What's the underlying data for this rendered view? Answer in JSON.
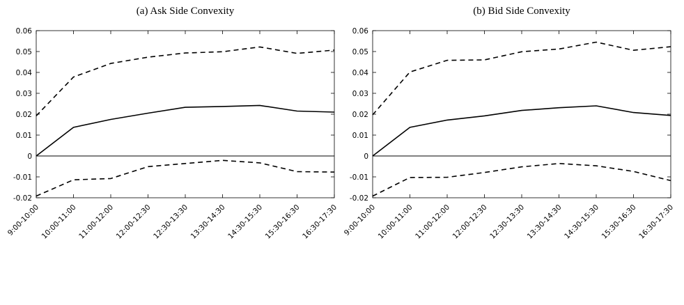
{
  "chart_data": [
    {
      "type": "line",
      "title": "(a) Ask Side Convexity",
      "categories": [
        "9:00-10:00",
        "10:00-11:00",
        "11:00-12:00",
        "12:00-12:30",
        "12:30-13:30",
        "13:30-14:30",
        "14:30-15:30",
        "15:30-16:30",
        "16:30-17:30"
      ],
      "series": [
        {
          "style": "solid",
          "values": [
            0.0,
            0.0137,
            0.0175,
            0.0205,
            0.0233,
            0.0237,
            0.0242,
            0.0215,
            0.021
          ]
        },
        {
          "style": "dashed",
          "values": [
            0.0192,
            0.0378,
            0.0443,
            0.0473,
            0.0493,
            0.0499,
            0.0522,
            0.0491,
            0.0507
          ]
        },
        {
          "style": "dashed",
          "values": [
            -0.0192,
            -0.0114,
            -0.0108,
            -0.0051,
            -0.0036,
            -0.0021,
            -0.0033,
            -0.0075,
            -0.0077
          ]
        }
      ],
      "ylim": [
        -0.02,
        0.06
      ],
      "yticks": [
        "-0.02",
        "-0.01",
        "0",
        "0.01",
        "0.02",
        "0.03",
        "0.04",
        "0.05",
        "0.06"
      ],
      "ytick_values": [
        -0.02,
        -0.01,
        0,
        0.01,
        0.02,
        0.03,
        0.04,
        0.05,
        0.06
      ],
      "zero_line": true,
      "grid": false,
      "xlabel": "",
      "ylabel": ""
    },
    {
      "type": "line",
      "title": "(b) Bid Side Convexity",
      "categories": [
        "9:00-10:00",
        "10:00-11:00",
        "11:00-12:00",
        "12:00-12:30",
        "12:30-13:30",
        "13:30-14:30",
        "14:30-15:30",
        "15:30-16:30",
        "16:30-17:30"
      ],
      "series": [
        {
          "style": "solid",
          "values": [
            0.0,
            0.0137,
            0.0172,
            0.0192,
            0.0218,
            0.0231,
            0.024,
            0.0208,
            0.0194
          ]
        },
        {
          "style": "dashed",
          "values": [
            0.0197,
            0.0402,
            0.0458,
            0.046,
            0.0499,
            0.0512,
            0.0545,
            0.0506,
            0.0523
          ]
        },
        {
          "style": "dashed",
          "values": [
            -0.0192,
            -0.0103,
            -0.0102,
            -0.0079,
            -0.0052,
            -0.0036,
            -0.0047,
            -0.0074,
            -0.0118
          ]
        }
      ],
      "ylim": [
        -0.02,
        0.06
      ],
      "yticks": [
        "-0.02",
        "-0.01",
        "0",
        "0.01",
        "0.02",
        "0.03",
        "0.04",
        "0.05",
        "0.06"
      ],
      "ytick_values": [
        -0.02,
        -0.01,
        0,
        0.01,
        0.02,
        0.03,
        0.04,
        0.05,
        0.06
      ],
      "zero_line": true,
      "grid": false,
      "xlabel": "",
      "ylabel": ""
    }
  ]
}
